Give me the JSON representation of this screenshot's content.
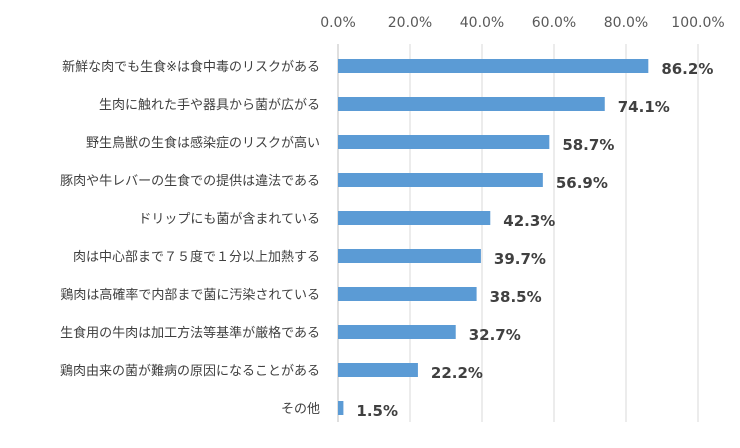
{
  "chart_data": {
    "type": "bar",
    "orientation": "horizontal",
    "categories": [
      "新鮮な肉でも生食※は食中毒のリスクがある",
      "生肉に触れた手や器具から菌が広がる",
      "野生鳥獣の生食は感染症のリスクが高い",
      "豚肉や牛レバーの生食での提供は違法である",
      "ドリップにも菌が含まれている",
      "肉は中心部まで７５度で１分以上加熱する",
      "鶏肉は高確率で内部まで菌に汚染されている",
      "生食用の牛肉は加工方法等基準が厳格である",
      "鶏肉由来の菌が難病の原因になることがある",
      "その他"
    ],
    "values": [
      86.2,
      74.1,
      58.7,
      56.9,
      42.3,
      39.7,
      38.5,
      32.7,
      22.2,
      1.5
    ],
    "data_labels": [
      "86.2%",
      "74.1%",
      "58.7%",
      "56.9%",
      "42.3%",
      "39.7%",
      "38.5%",
      "32.7%",
      "22.2%",
      "1.5%"
    ],
    "x_ticks": [
      "0.0%",
      "20.0%",
      "40.0%",
      "60.0%",
      "80.0%",
      "100.0%"
    ],
    "xlim": [
      0,
      100
    ],
    "x_axis_position": "top",
    "grid": true,
    "bar_color": "#5b9bd5",
    "title": "",
    "xlabel": "",
    "ylabel": ""
  }
}
